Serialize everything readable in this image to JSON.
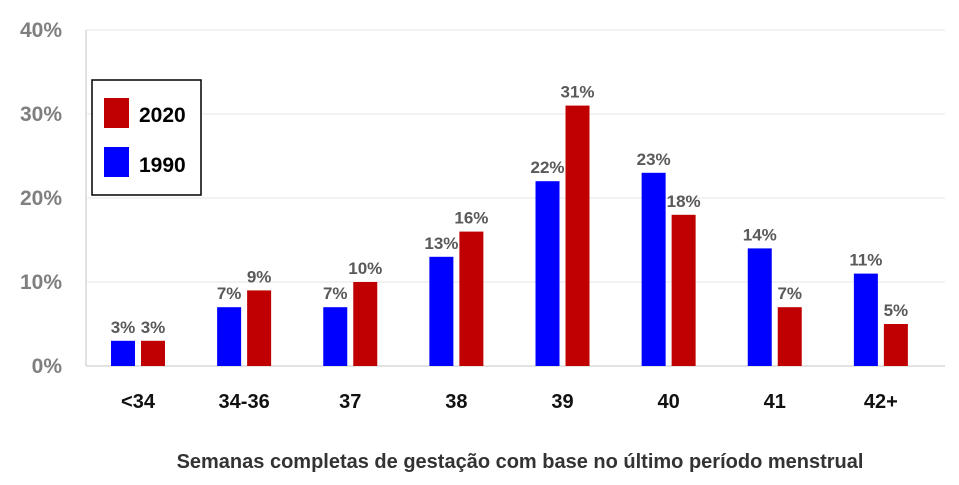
{
  "chart_data": {
    "type": "bar",
    "title": "",
    "xlabel": "Semanas completas de gestação com base no último período menstrual",
    "ylabel": "",
    "ylim": [
      0,
      40
    ],
    "yticks": [
      "0%",
      "10%",
      "20%",
      "30%",
      "40%"
    ],
    "categories": [
      "<34",
      "34-36",
      "37",
      "38",
      "39",
      "40",
      "41",
      "42+"
    ],
    "series": [
      {
        "name": "1990",
        "color": "#0000ff",
        "values": [
          3,
          7,
          7,
          13,
          22,
          23,
          14,
          11
        ],
        "labels": [
          "3%",
          "7%",
          "7%",
          "13%",
          "22%",
          "23%",
          "14%",
          "11%"
        ]
      },
      {
        "name": "2020",
        "color": "#c00000",
        "values": [
          3,
          9,
          10,
          16,
          31,
          18,
          7,
          5
        ],
        "labels": [
          "3%",
          "9%",
          "10%",
          "16%",
          "31%",
          "18%",
          "7%",
          "5%"
        ]
      }
    ],
    "legend": {
      "position": "top-left",
      "entries": [
        "2020",
        "1990"
      ]
    },
    "grid": true
  }
}
